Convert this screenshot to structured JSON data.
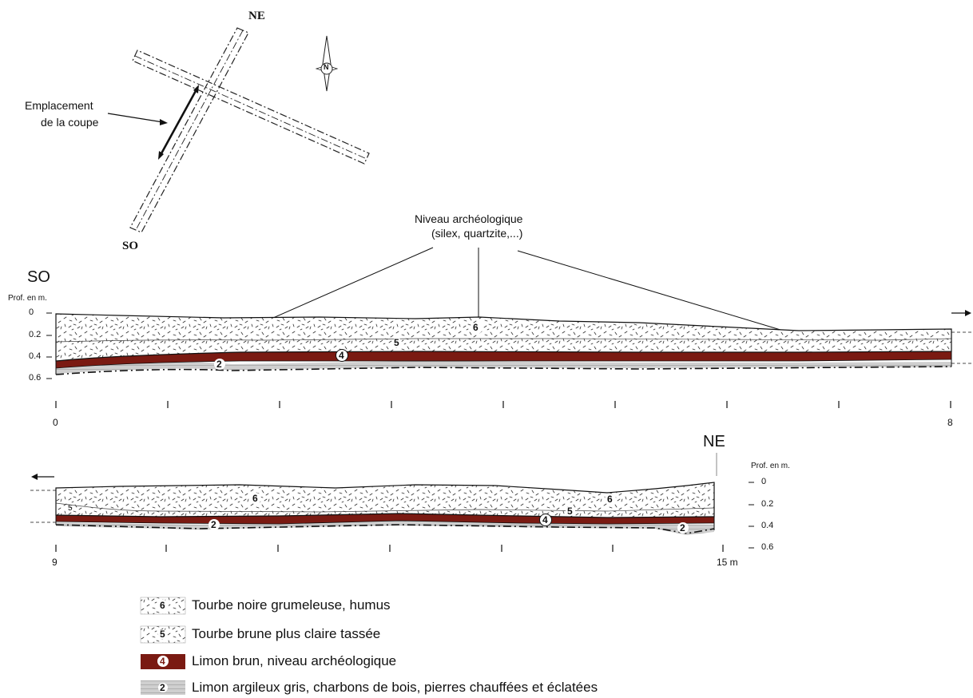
{
  "map": {
    "ne_label": "NE",
    "so_label": "SO",
    "location_label_line1": "Emplacement",
    "location_label_line2": "de la coupe",
    "north_symbol": "N"
  },
  "annotation": {
    "line1": "Niveau archéologique",
    "line2": "(silex, quartzite,...)"
  },
  "section1": {
    "end_label": "SO",
    "depth_title": "Prof. en m.",
    "depth_ticks": [
      "0",
      "0.2",
      "0.4",
      "0.6"
    ],
    "x_start": "0",
    "x_end": "8",
    "layer_numbers": {
      "l6": "6",
      "l5": "5",
      "l4": "4",
      "l2": "2"
    }
  },
  "section2": {
    "end_label": "NE",
    "depth_title": "Prof. en m.",
    "depth_ticks": [
      "0",
      "0.2",
      "0.4",
      "0.6"
    ],
    "x_start": "9",
    "x_end": "15 m",
    "layer_numbers": {
      "l6a": "6",
      "l6b": "6",
      "l5a": "5",
      "l5b": "5",
      "l4": "4",
      "l2a": "2",
      "l2b": "2"
    }
  },
  "legend": {
    "items": [
      {
        "number": "6",
        "text": "Tourbe noire grumeleuse, humus"
      },
      {
        "number": "5",
        "text": "Tourbe brune plus claire tassée"
      },
      {
        "number": "4",
        "text": "Limon brun, niveau archéologique"
      },
      {
        "number": "2",
        "text": "Limon argileux gris, charbons de bois, pierres chauffées et éclatées"
      }
    ]
  },
  "colors": {
    "limon_brun": "#7a1a12",
    "limon_gris": "#c9c9c9",
    "line": "#111111"
  }
}
